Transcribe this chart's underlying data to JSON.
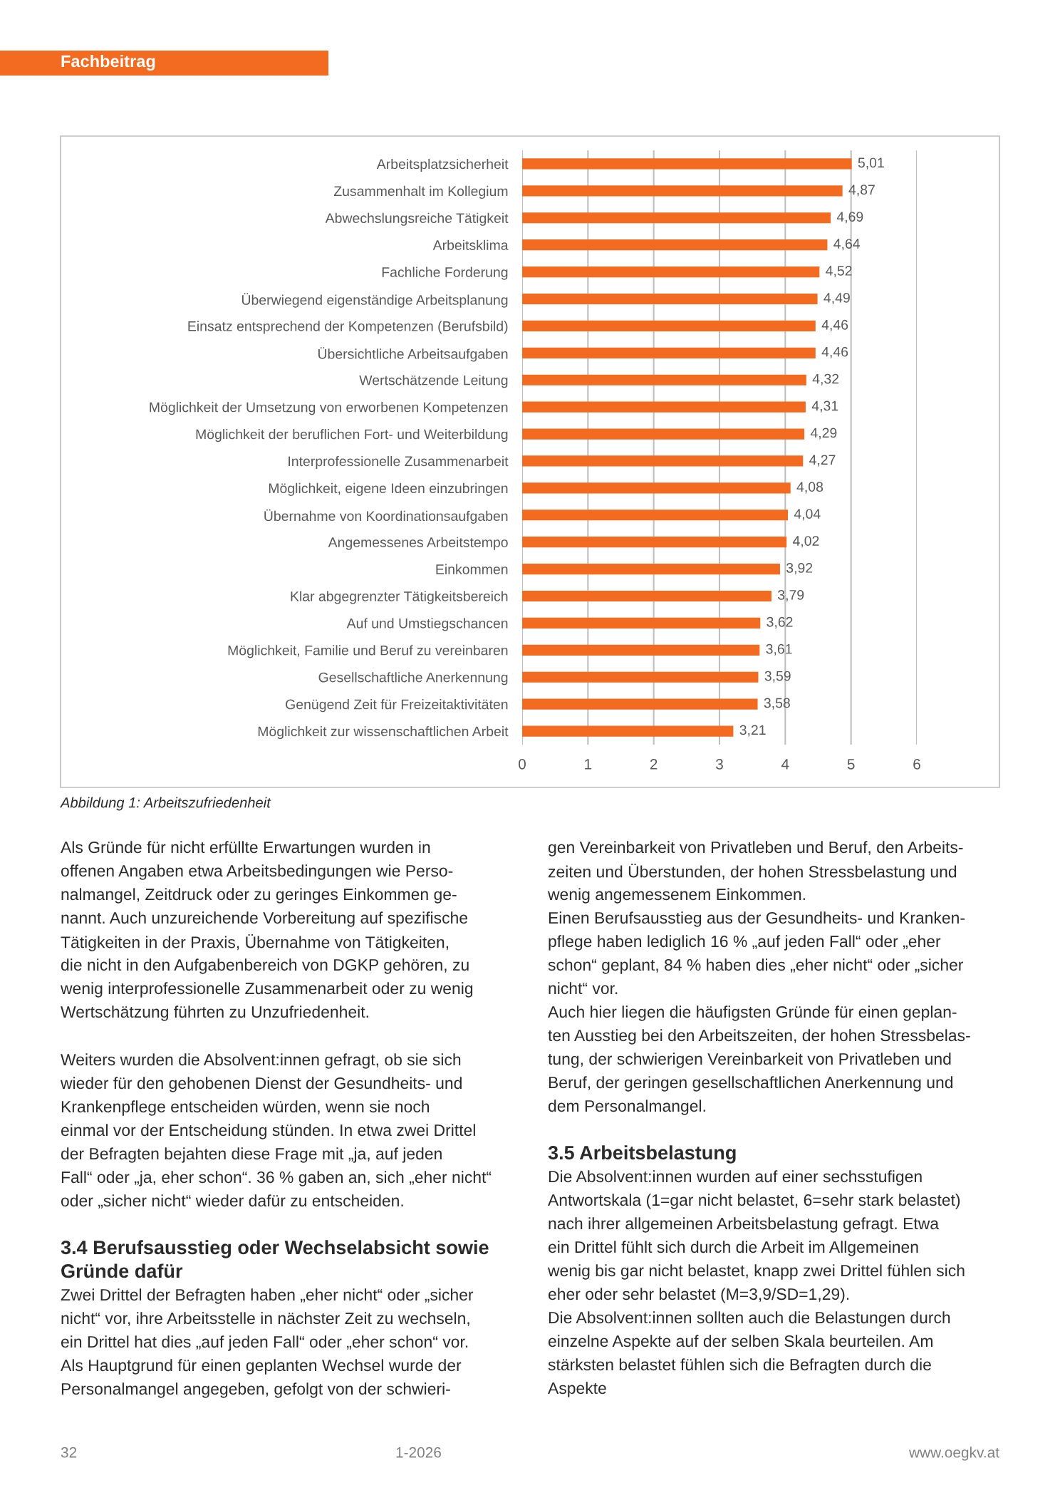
{
  "chart_data": {
    "type": "bar",
    "orientation": "horizontal",
    "categories": [
      "Arbeitsplatzsicherheit",
      "Zusammenhalt im Kollegium",
      "Abwechslungsreiche Tätigkeit",
      "Arbeitsklima",
      "Fachliche Forderung",
      "Überwiegend eigenständige Arbeitsplanung",
      "Einsatz entsprechend der Kompetenzen (Berufsbild)",
      "Übersichtliche Arbeitsaufgaben",
      "Wertschätzende Leitung",
      "Möglichkeit der Umsetzung von erworbenen Kompetenzen",
      "Möglichkeit der beruflichen Fort- und Weiterbildung",
      "Interprofessionelle Zusammenarbeit",
      "Möglichkeit, eigene Ideen einzubringen",
      "Übernahme von Koordinationsaufgaben",
      "Angemessenes Arbeitstempo",
      "Einkommen",
      "Klar abgegrenzter Tätigkeitsbereich",
      "Auf und Umstiegschancen",
      "Möglichkeit, Familie und Beruf zu vereinbaren",
      "Gesellschaftliche Anerkennung",
      "Genügend Zeit für Freizeitaktivitäten",
      "Möglichkeit zur wissenschaftlichen Arbeit"
    ],
    "values": [
      5.01,
      4.87,
      4.69,
      4.64,
      4.52,
      4.49,
      4.46,
      4.46,
      4.32,
      4.31,
      4.29,
      4.27,
      4.08,
      4.04,
      4.02,
      3.92,
      3.79,
      3.62,
      3.61,
      3.59,
      3.58,
      3.21
    ],
    "value_labels": [
      "5,01",
      "4,87",
      "4,69",
      "4,64",
      "4,52",
      "4,49",
      "4,46",
      "4,46",
      "4,32",
      "4,31",
      "4,29",
      "4,27",
      "4,08",
      "4,04",
      "4,02",
      "3,92",
      "3,79",
      "3,62",
      "3,61",
      "3,59",
      "3,58",
      "3,21"
    ],
    "color": "#f26b21",
    "xlim": [
      0,
      6
    ],
    "xticks": [
      0,
      1,
      2,
      3,
      4,
      5,
      6
    ],
    "grid": "x",
    "legend": false,
    "annotations": [
      "Fachbeitrag",
      "Abbildung 1: Arbeitszufriedenheit",
      "Als Gründe für nicht erfüllte Erwartungen wurden in\noffenen Angaben etwa Arbeitsbedingungen wie Perso-\nnalmangel, Zeitdruck oder zu geringes Einkommen ge-\nnannt. Auch unzureichende Vorbereitung auf spezifische\nTätigkeiten in der Praxis, Übernahme von Tätigkeiten,\ndie nicht in den Aufgabenbereich von DGKP gehören, zu\nwenig interprofessionelle Zusammenarbeit oder zu wenig\nWertschätzung führten zu Unzufriedenheit.",
      "Weiters wurden die Absolvent:innen gefragt, ob sie sich\nwieder für den gehobenen Dienst der Gesundheits- und\nKrankenpflege entscheiden würden, wenn sie noch\neinmal vor der Entscheidung stünden. In etwa zwei Drittel\nder Befragten bejahten diese Frage mit „ja, auf jeden\nFall“ oder „ja, eher schon“. 36 % gaben an, sich „eher nicht“\noder „sicher nicht“ wieder dafür zu entscheiden.",
      "3.4 Berufsausstieg oder Wechselabsicht sowie\nGründe dafür",
      "Zwei Drittel der Befragten haben „eher nicht“ oder „sicher\nnicht“ vor, ihre Arbeitsstelle in nächster Zeit zu wechseln,\nein Drittel hat dies „auf jeden Fall“ oder „eher schon“ vor.\nAls Hauptgrund für einen geplanten Wechsel wurde der\nPersonalmangel angegeben, gefolgt von der schwieri-",
      "gen Vereinbarkeit von Privatleben und Beruf, den Arbeits-\nzeiten und Überstunden, der hohen Stressbelastung und\nwenig angemessenem Einkommen.\nEinen Berufsausstieg aus der Gesundheits- und Kranken-\npflege haben lediglich 16 % „auf jeden Fall“ oder „eher\nschon“ geplant, 84 % haben dies „eher nicht“ oder „sicher\nnicht“ vor.\nAuch hier liegen die häufigsten Gründe für einen geplan-\nten Ausstieg bei den Arbeitszeiten, der hohen Stressbelas-\ntung, der schwierigen Vereinbarkeit von Privatleben und\nBeruf, der geringen gesellschaftlichen Anerkennung und\ndem Personalmangel.",
      "3.5 Arbeitsbelastung",
      "Die Absolvent:innen wurden auf einer sechsstufigen\nAntwortskala (1=gar nicht belastet, 6=sehr stark belastet)\nnach ihrer allgemeinen Arbeitsbelastung gefragt. Etwa\nein Drittel fühlt sich durch die Arbeit im Allgemeinen\nwenig bis gar nicht belastet, knapp zwei Drittel fühlen sich\neher oder sehr belastet (M=3,9/SD=1,29).\nDie Absolvent:innen sollten auch die Belastungen durch\neinzelne Aspekte auf der selben Skala beurteilen. Am\nstärksten belastet fühlen sich die Befragten durch die\nAspekte",
      "32",
      "1-2026",
      "www.oegkv.at"
    ]
  }
}
